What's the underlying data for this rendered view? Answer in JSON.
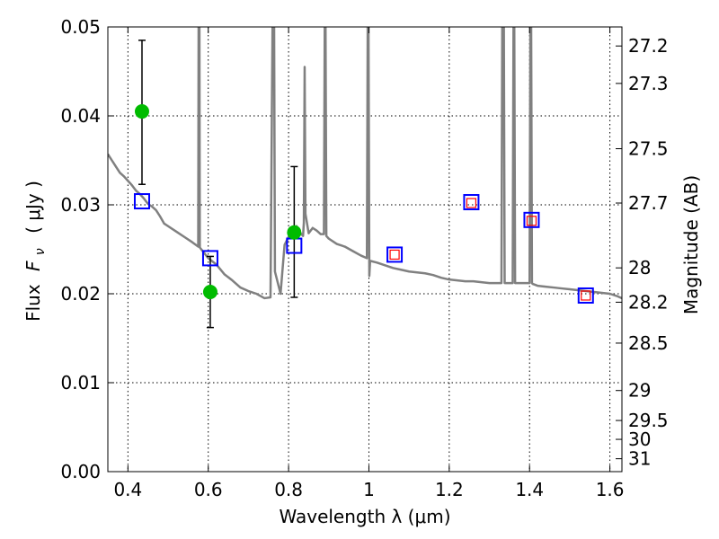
{
  "chart_data": {
    "type": "line",
    "xlabel": "Wavelength  λ (μm)",
    "ylabel_prefix": "Flux",
    "ylabel_symbol": "F",
    "ylabel_sub": "ν",
    "ylabel_unit": "( μJy )",
    "y2label": "Magnitude (AB)",
    "xlim": [
      0.35,
      1.63
    ],
    "ylim": [
      0.0,
      0.05
    ],
    "grid": true,
    "x_ticks": [
      0.4,
      0.6,
      0.8,
      1.0,
      1.2,
      1.4,
      1.6
    ],
    "x_tick_labels": [
      "0.4",
      "0.6",
      "0.8",
      "1",
      "1.2",
      "1.4",
      "1.6"
    ],
    "y_ticks": [
      0.0,
      0.01,
      0.02,
      0.03,
      0.04,
      0.05
    ],
    "y_tick_labels": [
      "0.00",
      "0.01",
      "0.02",
      "0.03",
      "0.04",
      "0.05"
    ],
    "y2_ticks": [
      {
        "label": "27.2",
        "flux": 0.04786
      },
      {
        "label": "27.3",
        "flux": 0.04365
      },
      {
        "label": "27.5",
        "flux": 0.03631
      },
      {
        "label": "27.7",
        "flux": 0.0302
      },
      {
        "label": "28",
        "flux": 0.02291
      },
      {
        "label": "28.2",
        "flux": 0.01905
      },
      {
        "label": "28.5",
        "flux": 0.01445
      },
      {
        "label": "29",
        "flux": 0.00912
      },
      {
        "label": "29.5",
        "flux": 0.00575
      },
      {
        "label": "30",
        "flux": 0.00363
      },
      {
        "label": "31",
        "flux": 0.00145
      }
    ],
    "series": [
      {
        "kind": "model-spectrum",
        "color": "#808080",
        "x": [
          0.35,
          0.36,
          0.37,
          0.38,
          0.39,
          0.4,
          0.41,
          0.42,
          0.43,
          0.44,
          0.45,
          0.46,
          0.47,
          0.48,
          0.49,
          0.5,
          0.52,
          0.54,
          0.56,
          0.575,
          0.576,
          0.578,
          0.579,
          0.6,
          0.62,
          0.64,
          0.66,
          0.68,
          0.7,
          0.72,
          0.74,
          0.755,
          0.76,
          0.762,
          0.764,
          0.766,
          0.78,
          0.79,
          0.8,
          0.81,
          0.82,
          0.83,
          0.836,
          0.838,
          0.84,
          0.842,
          0.85,
          0.86,
          0.87,
          0.88,
          0.888,
          0.89,
          0.892,
          0.894,
          0.9,
          0.92,
          0.94,
          0.96,
          0.98,
          0.995,
          0.997,
          0.999,
          1.001,
          1.003,
          1.02,
          1.04,
          1.06,
          1.08,
          1.1,
          1.12,
          1.14,
          1.16,
          1.18,
          1.2,
          1.22,
          1.24,
          1.26,
          1.28,
          1.3,
          1.33,
          1.332,
          1.334,
          1.336,
          1.338,
          1.35,
          1.358,
          1.36,
          1.362,
          1.364,
          1.38,
          1.4,
          1.402,
          1.404,
          1.406,
          1.408,
          1.42,
          1.44,
          1.46,
          1.48,
          1.5,
          1.52,
          1.54,
          1.56,
          1.58,
          1.6,
          1.62,
          1.63
        ],
        "values": [
          0.0357,
          0.035,
          0.0343,
          0.0336,
          0.0332,
          0.0327,
          0.0322,
          0.0316,
          0.0312,
          0.0307,
          0.0301,
          0.0298,
          0.0294,
          0.0287,
          0.0279,
          0.0276,
          0.027,
          0.0264,
          0.0258,
          0.0253,
          0.05,
          0.05,
          0.0252,
          0.024,
          0.0233,
          0.0222,
          0.0215,
          0.0207,
          0.0203,
          0.02,
          0.0195,
          0.0196,
          0.05,
          0.05,
          0.05,
          0.0225,
          0.02,
          0.0255,
          0.0264,
          0.0271,
          0.0276,
          0.0268,
          0.0265,
          0.028,
          0.0455,
          0.029,
          0.0268,
          0.0274,
          0.0271,
          0.0267,
          0.0267,
          0.05,
          0.05,
          0.0265,
          0.0262,
          0.0256,
          0.0253,
          0.0248,
          0.0243,
          0.024,
          0.05,
          0.05,
          0.022,
          0.0237,
          0.0235,
          0.0232,
          0.0229,
          0.0227,
          0.0225,
          0.0224,
          0.0223,
          0.0221,
          0.0218,
          0.0216,
          0.0215,
          0.0214,
          0.0214,
          0.0213,
          0.0212,
          0.0212,
          0.05,
          0.05,
          0.05,
          0.0212,
          0.0212,
          0.0212,
          0.05,
          0.05,
          0.0212,
          0.0212,
          0.0212,
          0.05,
          0.05,
          0.0212,
          0.0211,
          0.0209,
          0.0208,
          0.0207,
          0.0206,
          0.0205,
          0.0204,
          0.0203,
          0.0202,
          0.0201,
          0.02,
          0.0197,
          0.0195
        ]
      },
      {
        "kind": "observed-photometry",
        "color": "#00bb00",
        "x": [
          0.435,
          0.605,
          0.814
        ],
        "values": [
          0.0405,
          0.0202,
          0.0269
        ],
        "err_low": [
          0.0323,
          0.0162,
          0.0196
        ],
        "err_high": [
          0.0485,
          0.0242,
          0.0343
        ]
      },
      {
        "kind": "model-photometry",
        "color": "#0000ff",
        "marker": "open-square-large",
        "x": [
          0.435,
          0.605,
          0.814,
          1.064,
          1.255,
          1.405,
          1.54
        ],
        "values": [
          0.0304,
          0.024,
          0.0254,
          0.0244,
          0.0303,
          0.0283,
          0.0198
        ]
      },
      {
        "kind": "model-photometry-ir",
        "color": "#ff0000",
        "marker": "open-square-small",
        "x": [
          1.064,
          1.255,
          1.405,
          1.54
        ],
        "values": [
          0.0244,
          0.0302,
          0.0282,
          0.0198
        ]
      }
    ]
  }
}
